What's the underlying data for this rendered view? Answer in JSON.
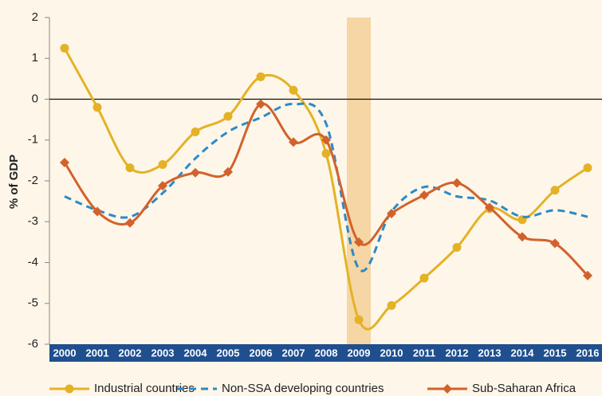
{
  "chart_data": {
    "type": "line",
    "ylabel": "% of GDP",
    "categories": [
      "2000",
      "2001",
      "2002",
      "2003",
      "2004",
      "2005",
      "2006",
      "2007",
      "2008",
      "2009",
      "2010",
      "2011",
      "2012",
      "2013",
      "2014",
      "2015",
      "2016"
    ],
    "highlight": "2009",
    "ylim": [
      -6,
      2
    ],
    "yticks": [
      -6,
      -5,
      -4,
      -3,
      -2,
      -1,
      0,
      1,
      2
    ],
    "series": [
      {
        "name": "Industrial countries",
        "color": "#e5b225",
        "marker": "circle",
        "dash": false,
        "values": [
          1.25,
          -0.2,
          -1.68,
          -1.6,
          -0.8,
          -0.42,
          0.55,
          0.22,
          -1.33,
          -5.4,
          -5.05,
          -4.38,
          -3.63,
          -2.68,
          -2.95,
          -2.23,
          -1.68
        ]
      },
      {
        "name": "Non-SSA developing countries",
        "color": "#2c8ac6",
        "marker": "none",
        "dash": true,
        "values": [
          -2.38,
          -2.72,
          -2.88,
          -2.3,
          -1.45,
          -0.8,
          -0.45,
          -0.12,
          -0.6,
          -4.15,
          -2.75,
          -2.15,
          -2.38,
          -2.48,
          -2.88,
          -2.72,
          -2.88
        ]
      },
      {
        "name": "Sub-Saharan Africa",
        "color": "#d2622b",
        "marker": "diamond",
        "dash": false,
        "values": [
          -1.55,
          -2.75,
          -3.03,
          -2.12,
          -1.8,
          -1.78,
          -0.12,
          -1.05,
          -1.0,
          -3.5,
          -2.8,
          -2.35,
          -2.05,
          -2.65,
          -3.37,
          -3.53,
          -4.32
        ]
      }
    ]
  }
}
